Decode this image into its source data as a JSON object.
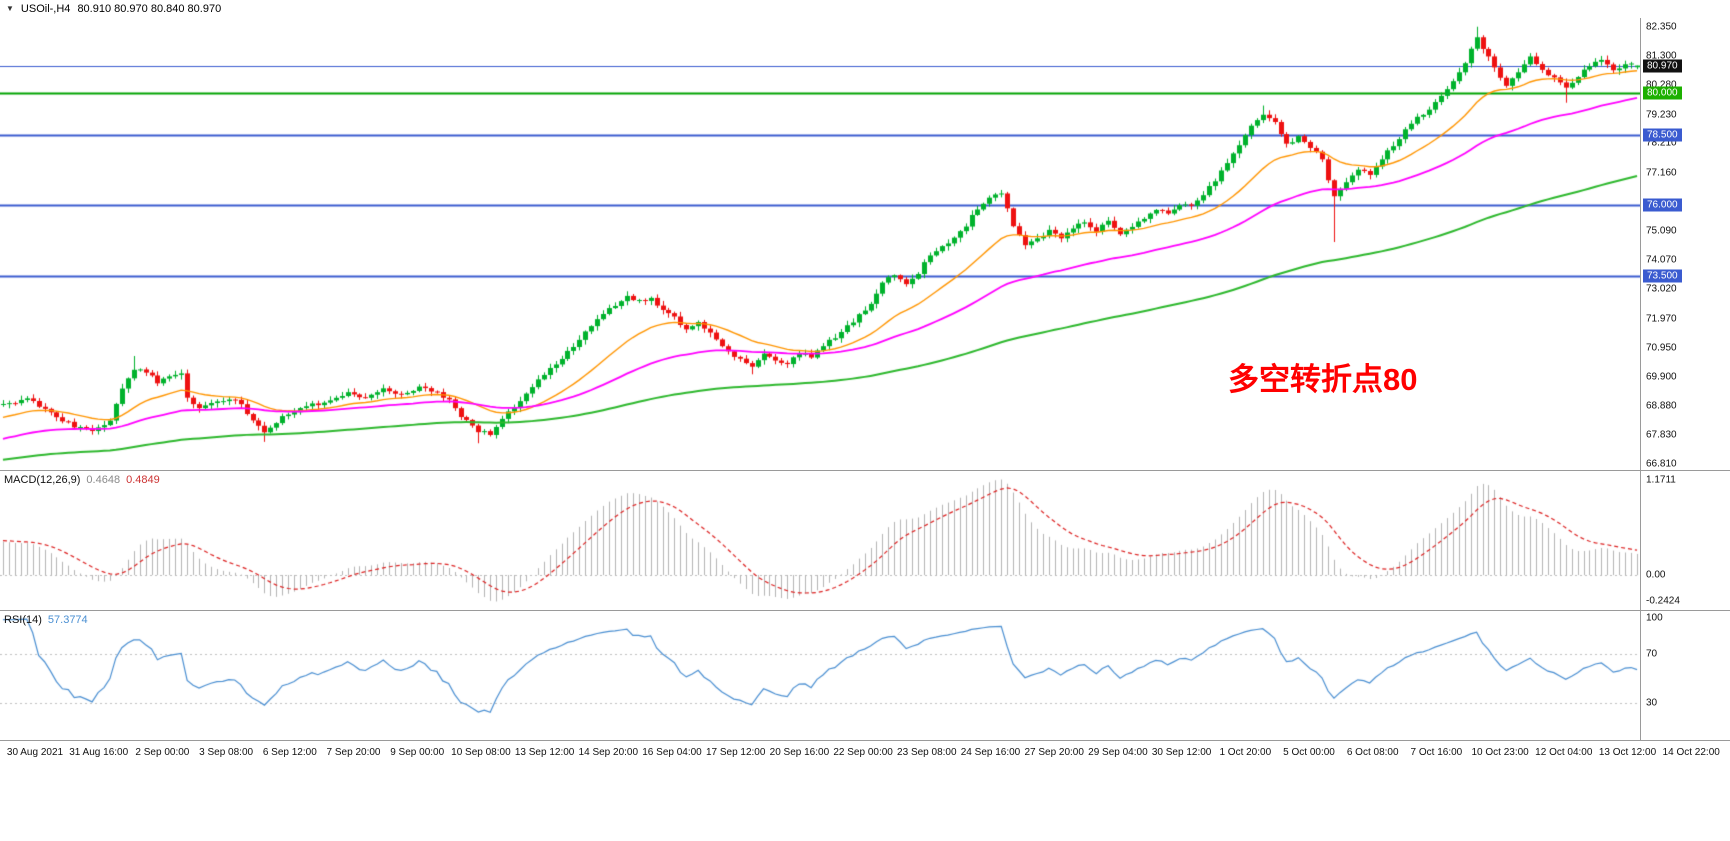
{
  "header": {
    "dropdown_icon": "▼",
    "symbol_period": "USOil-,H4",
    "ohlc": "80.910 80.970 80.840 80.970"
  },
  "annotation": {
    "text": "多空转折点80",
    "color": "#ff0000"
  },
  "price_axis": {
    "max": 82.66,
    "min": 66.6,
    "ticks": [
      "82.350",
      "81.300",
      "80.280",
      "79.230",
      "78.210",
      "77.160",
      "75.090",
      "74.070",
      "73.020",
      "71.970",
      "70.950",
      "69.900",
      "68.880",
      "67.830",
      "66.810"
    ],
    "badges": [
      {
        "label": "80.970",
        "price": 80.97,
        "bg": "#111111"
      },
      {
        "label": "80.000",
        "price": 80.0,
        "bg": "#1db000"
      },
      {
        "label": "78.500",
        "price": 78.5,
        "bg": "#3a5bd0"
      },
      {
        "label": "76.000",
        "price": 76.0,
        "bg": "#3a5bd0"
      },
      {
        "label": "73.500",
        "price": 73.5,
        "bg": "#3a5bd0"
      }
    ]
  },
  "time_axis": {
    "labels": [
      "30 Aug 2021",
      "31 Aug 16:00",
      "2 Sep 00:00",
      "3 Sep 08:00",
      "6 Sep 12:00",
      "7 Sep 20:00",
      "9 Sep 00:00",
      "10 Sep 08:00",
      "13 Sep 12:00",
      "14 Sep 20:00",
      "16 Sep 04:00",
      "17 Sep 12:00",
      "20 Sep 16:00",
      "22 Sep 00:00",
      "23 Sep 08:00",
      "24 Sep 16:00",
      "27 Sep 20:00",
      "29 Sep 04:00",
      "30 Sep 12:00",
      "1 Oct 20:00",
      "5 Oct 00:00",
      "6 Oct 08:00",
      "7 Oct 16:00",
      "10 Oct 23:00",
      "12 Oct 04:00",
      "13 Oct 12:00",
      "14 Oct 22:00"
    ]
  },
  "indicators": {
    "macd": {
      "label": "MACD(12,26,9)",
      "value_main": "0.4648",
      "value_signal": "0.4849",
      "params": {
        "fast": 12,
        "slow": 26,
        "signal": 9
      },
      "axis_labels": {
        "max": "1.1711",
        "zero": "0.00",
        "min": "-0.2424"
      }
    },
    "rsi": {
      "label": "RSI(14)",
      "value": "57.3774",
      "period": 14,
      "axis_labels": {
        "top": "100",
        "upper": "70",
        "lower": "30"
      },
      "levels": [
        70,
        30
      ]
    }
  },
  "colors": {
    "background": "#ffffff",
    "bull": "#00b22c",
    "bear": "#ee1111",
    "macd_hist": "#b4b4b4",
    "macd_signal": "#dd2222",
    "macd_zero": "#bdbdbd",
    "rsi_line": "#4a8fd2",
    "rsi_level": "#c0c0c0",
    "level_blue": "#3a5bd0",
    "level_green": "#00a400"
  },
  "chart_data": {
    "type": "candlestick",
    "symbol": "USOil",
    "timeframe": "H4",
    "title": "USOil-,H4",
    "last_bar": {
      "open": 80.91,
      "high": 80.97,
      "low": 80.84,
      "close": 80.97
    },
    "price_range_visible": [
      66.81,
      82.35
    ],
    "visible_bars": 276,
    "warmup_bars": 40,
    "close_anchors": [
      [
        -40,
        66.3
      ],
      [
        -32,
        67.0
      ],
      [
        -24,
        67.7
      ],
      [
        -16,
        68.2
      ],
      [
        -8,
        68.6
      ],
      [
        -3,
        68.8
      ],
      [
        0,
        68.95
      ],
      [
        4,
        69.1
      ],
      [
        7,
        68.8
      ],
      [
        9,
        68.5
      ],
      [
        12,
        68.15
      ],
      [
        15,
        67.95
      ],
      [
        18,
        68.4
      ],
      [
        20,
        69.5
      ],
      [
        22,
        70.2
      ],
      [
        24,
        70.1
      ],
      [
        26,
        69.7
      ],
      [
        28,
        69.9
      ],
      [
        30,
        70.05
      ],
      [
        31,
        69.15
      ],
      [
        33,
        68.8
      ],
      [
        36,
        69.05
      ],
      [
        39,
        69.15
      ],
      [
        41,
        68.6
      ],
      [
        44,
        67.95
      ],
      [
        47,
        68.5
      ],
      [
        50,
        68.8
      ],
      [
        54,
        69.0
      ],
      [
        58,
        69.3
      ],
      [
        61,
        69.2
      ],
      [
        64,
        69.45
      ],
      [
        67,
        69.3
      ],
      [
        70,
        69.5
      ],
      [
        73,
        69.35
      ],
      [
        75,
        69.1
      ],
      [
        77,
        68.5
      ],
      [
        80,
        68.0
      ],
      [
        82,
        67.85
      ],
      [
        84,
        68.45
      ],
      [
        87,
        69.1
      ],
      [
        90,
        69.8
      ],
      [
        93,
        70.4
      ],
      [
        96,
        71.0
      ],
      [
        99,
        71.7
      ],
      [
        102,
        72.3
      ],
      [
        105,
        72.8
      ],
      [
        107,
        72.6
      ],
      [
        109,
        72.7
      ],
      [
        111,
        72.3
      ],
      [
        113,
        72.0
      ],
      [
        115,
        71.6
      ],
      [
        117,
        71.85
      ],
      [
        119,
        71.45
      ],
      [
        121,
        70.95
      ],
      [
        124,
        70.5
      ],
      [
        126,
        70.25
      ],
      [
        128,
        70.7
      ],
      [
        130,
        70.5
      ],
      [
        132,
        70.35
      ],
      [
        134,
        70.75
      ],
      [
        136,
        70.6
      ],
      [
        138,
        71.0
      ],
      [
        141,
        71.5
      ],
      [
        144,
        72.1
      ],
      [
        146,
        72.45
      ],
      [
        148,
        73.3
      ],
      [
        150,
        73.55
      ],
      [
        152,
        73.25
      ],
      [
        154,
        73.6
      ],
      [
        156,
        74.25
      ],
      [
        158,
        74.5
      ],
      [
        160,
        74.8
      ],
      [
        162,
        75.3
      ],
      [
        164,
        75.9
      ],
      [
        166,
        76.3
      ],
      [
        168,
        76.45
      ],
      [
        170,
        75.3
      ],
      [
        172,
        74.65
      ],
      [
        174,
        74.85
      ],
      [
        176,
        75.1
      ],
      [
        178,
        74.8
      ],
      [
        180,
        75.2
      ],
      [
        182,
        75.4
      ],
      [
        184,
        75.1
      ],
      [
        186,
        75.45
      ],
      [
        188,
        74.95
      ],
      [
        190,
        75.3
      ],
      [
        192,
        75.55
      ],
      [
        194,
        75.85
      ],
      [
        196,
        75.7
      ],
      [
        198,
        76.0
      ],
      [
        200,
        75.95
      ],
      [
        202,
        76.35
      ],
      [
        204,
        76.9
      ],
      [
        206,
        77.5
      ],
      [
        208,
        78.1
      ],
      [
        210,
        78.8
      ],
      [
        212,
        79.25
      ],
      [
        214,
        78.9
      ],
      [
        216,
        78.2
      ],
      [
        218,
        78.4
      ],
      [
        220,
        78.1
      ],
      [
        222,
        77.6
      ],
      [
        224,
        76.3
      ],
      [
        226,
        76.85
      ],
      [
        228,
        77.3
      ],
      [
        230,
        77.1
      ],
      [
        232,
        77.65
      ],
      [
        234,
        78.15
      ],
      [
        236,
        78.65
      ],
      [
        238,
        79.1
      ],
      [
        240,
        79.45
      ],
      [
        242,
        79.9
      ],
      [
        244,
        80.4
      ],
      [
        246,
        81.1
      ],
      [
        248,
        81.95
      ],
      [
        250,
        81.25
      ],
      [
        252,
        80.55
      ],
      [
        253,
        80.2
      ],
      [
        255,
        80.75
      ],
      [
        257,
        81.3
      ],
      [
        259,
        80.85
      ],
      [
        261,
        80.5
      ],
      [
        263,
        80.15
      ],
      [
        265,
        80.6
      ],
      [
        267,
        81.0
      ],
      [
        269,
        81.2
      ],
      [
        271,
        80.8
      ],
      [
        273,
        81.05
      ],
      [
        275,
        80.97
      ]
    ],
    "wick_overrides": {
      "22": {
        "high": 70.65
      },
      "44": {
        "low": 67.6
      },
      "80": {
        "low": 67.55
      },
      "105": {
        "high": 72.95
      },
      "126": {
        "low": 70.0
      },
      "212": {
        "high": 79.55
      },
      "224": {
        "low": 74.7
      },
      "248": {
        "high": 82.35
      },
      "263": {
        "low": 79.65
      },
      "275": {
        "open": 80.91,
        "high": 80.97,
        "low": 80.84,
        "close": 80.97
      }
    },
    "moving_averages": [
      {
        "name": "ma-fast",
        "period": 20,
        "color": "#ff9500"
      },
      {
        "name": "ma-medium",
        "period": 55,
        "color": "#ff00ff"
      },
      {
        "name": "ma-slow",
        "period": 150,
        "color": "#2eb82e"
      }
    ],
    "horizontal_lines": [
      {
        "price": 80.97,
        "color": "#3a5bd0",
        "width": 1
      },
      {
        "price": 80.0,
        "color": "#00a400",
        "width": 2
      },
      {
        "price": 78.5,
        "color": "#3a5bd0",
        "width": 2
      },
      {
        "price": 76.0,
        "color": "#3a5bd0",
        "width": 2
      },
      {
        "price": 73.5,
        "color": "#3a5bd0",
        "width": 2
      }
    ]
  }
}
